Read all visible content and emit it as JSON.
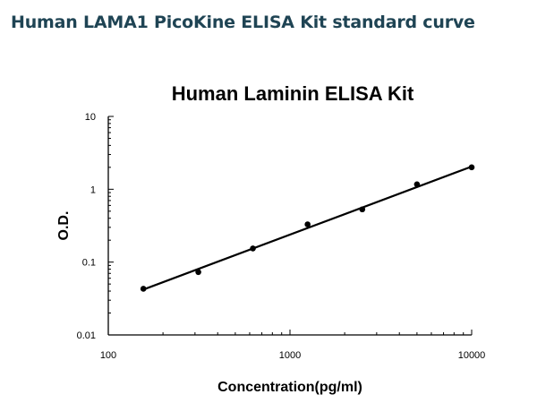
{
  "page": {
    "title": "Human LAMA1 PicoKine ELISA Kit standard curve"
  },
  "chart_data": {
    "type": "scatter",
    "title": "Human Laminin ELISA Kit",
    "xlabel": "Concentration(pg/ml)",
    "ylabel": "O.D.",
    "x_scale": "log",
    "y_scale": "log",
    "xlim": [
      100,
      10000
    ],
    "ylim": [
      0.01,
      10
    ],
    "x_ticks": [
      {
        "value": 100,
        "label": "100"
      },
      {
        "value": 1000,
        "label": "1000"
      },
      {
        "value": 10000,
        "label": "10000"
      }
    ],
    "y_ticks": [
      {
        "value": 0.01,
        "label": "0.01"
      },
      {
        "value": 0.1,
        "label": "0.1"
      },
      {
        "value": 1,
        "label": "1"
      },
      {
        "value": 10,
        "label": "10"
      }
    ],
    "grid": false,
    "series": [
      {
        "points": [
          {
            "x": 156,
            "y": 0.043
          },
          {
            "x": 313,
            "y": 0.073
          },
          {
            "x": 625,
            "y": 0.154
          },
          {
            "x": 1250,
            "y": 0.33
          },
          {
            "x": 2500,
            "y": 0.53
          },
          {
            "x": 5000,
            "y": 1.17
          },
          {
            "x": 10000,
            "y": 2.0
          }
        ],
        "fit_line": [
          {
            "x": 156,
            "y": 0.042
          },
          {
            "x": 10000,
            "y": 2.05
          }
        ],
        "color": "#000000"
      }
    ]
  }
}
